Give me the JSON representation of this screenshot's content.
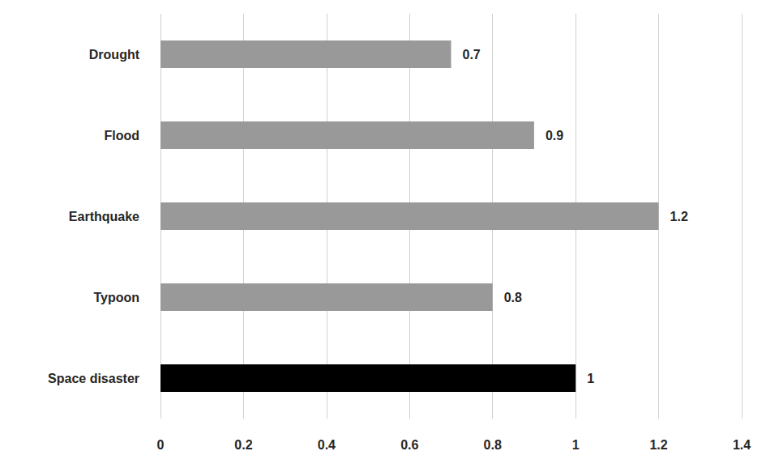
{
  "chart_data": {
    "type": "bar",
    "orientation": "horizontal",
    "categories": [
      "Drought",
      "Flood",
      "Earthquake",
      "Typoon",
      "Space disaster"
    ],
    "values": [
      0.7,
      0.9,
      1.2,
      0.8,
      1
    ],
    "colors": [
      "#999999",
      "#999999",
      "#999999",
      "#999999",
      "#000000"
    ],
    "xlim": [
      0,
      1.4
    ],
    "xticks": [
      0,
      0.2,
      0.4,
      0.6,
      0.8,
      1,
      1.2,
      1.4
    ],
    "grid": true,
    "data_labels": true
  }
}
